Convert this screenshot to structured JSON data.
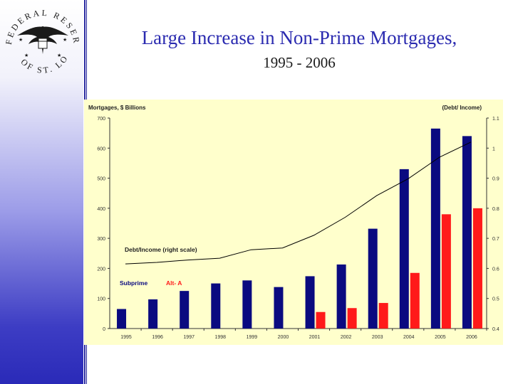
{
  "slide": {
    "title_line1": "Large Increase in Non-Prime Mortgages,",
    "title_line2": "1995 - 2006"
  },
  "logo": {
    "text": "FEDERAL RESERVE BANK OF ST. LOUIS"
  },
  "colors": {
    "subprime": "#0a0a80",
    "alta": "#ff1a1a",
    "plot_bg": "#ffffcc",
    "line": "#000000"
  },
  "chart_data": {
    "type": "bar",
    "categories": [
      "1995",
      "1996",
      "1997",
      "1998",
      "1999",
      "2000",
      "2001",
      "2002",
      "2003",
      "2004",
      "2005",
      "2006"
    ],
    "series": [
      {
        "name": "Subprime",
        "values": [
          65,
          97,
          125,
          150,
          160,
          138,
          174,
          213,
          332,
          530,
          665,
          640
        ]
      },
      {
        "name": "Alt- A",
        "values": [
          null,
          null,
          null,
          null,
          null,
          null,
          55,
          68,
          85,
          185,
          380,
          400
        ]
      }
    ],
    "line_series": {
      "name": "Debt/Income (right scale)",
      "values": [
        0.615,
        0.62,
        0.628,
        0.634,
        0.662,
        0.668,
        0.71,
        0.77,
        0.842,
        0.898,
        0.97,
        1.02
      ]
    },
    "ylabel": "Mortgages, $ Billions",
    "ylabel_right": "(Debt/ Income)",
    "ylim": [
      0,
      700
    ],
    "ylim_right": [
      0.4,
      1.1
    ],
    "yticks": [
      "0",
      "100",
      "200",
      "300",
      "400",
      "500",
      "600",
      "700"
    ],
    "yticks_right": [
      "0.4",
      "0.5",
      "0.6",
      "0.7",
      "0.8",
      "0.9",
      "1",
      "1.1"
    ],
    "legend": [
      "Subprime",
      "Alt- A"
    ],
    "legend_placement": "bottom-left",
    "grid": false
  }
}
